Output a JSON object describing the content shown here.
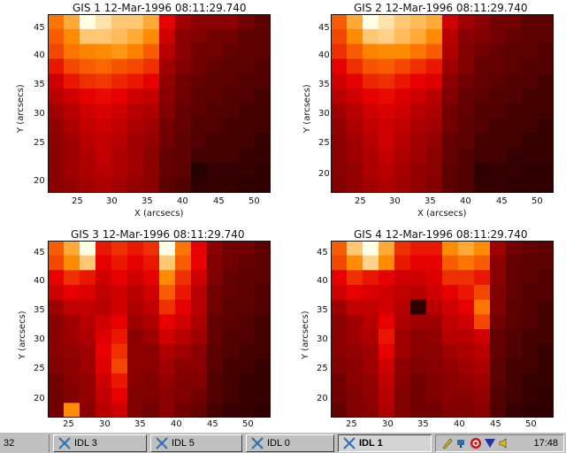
{
  "colors": {
    "bg": "#ffffff",
    "taskbar": "#c0c0c0",
    "text": "#111111"
  },
  "panels": [
    {
      "title": "GIS 1 12-Mar-1996 08:11:29.740",
      "xlabel": "X (arcsecs)",
      "ylabel": "Y (arcsecs)",
      "xticks": [
        "25",
        "30",
        "35",
        "40",
        "45",
        "50"
      ],
      "yticks": [
        "45",
        "40",
        "35",
        "30",
        "25",
        "20"
      ]
    },
    {
      "title": "GIS 2 12-Mar-1996 08:11:29.740",
      "xlabel": "X (arcsecs)",
      "ylabel": "Y (arcsecs)",
      "xticks": [
        "25",
        "30",
        "35",
        "40",
        "45",
        "50"
      ],
      "yticks": [
        "45",
        "40",
        "35",
        "30",
        "25",
        "20"
      ]
    },
    {
      "title": "GIS 3 12-Mar-1996 08:11:29.740",
      "xlabel": "",
      "ylabel": "Y (arcsecs)",
      "xticks": [
        "25",
        "30",
        "35",
        "40",
        "45",
        "50"
      ],
      "yticks": [
        "45",
        "40",
        "35",
        "30",
        "25",
        "20"
      ]
    },
    {
      "title": "GIS 4 12-Mar-1996 08:11:29.740",
      "xlabel": "",
      "ylabel": "Y (arcsecs)",
      "xticks": [
        "25",
        "30",
        "35",
        "40",
        "45",
        "50"
      ],
      "yticks": [
        "45",
        "40",
        "35",
        "30",
        "25",
        "20"
      ]
    }
  ],
  "chart_data": [
    {
      "type": "heatmap",
      "title": "GIS 1 12-Mar-1996 08:11:29.740",
      "xlabel": "X (arcsecs)",
      "ylabel": "Y (arcsecs)",
      "xlim": [
        21,
        52
      ],
      "ylim": [
        17.5,
        48
      ],
      "colormap": "red-temperature",
      "z": [
        [
          0.75,
          0.85,
          1.0,
          0.95,
          0.9,
          0.9,
          0.85,
          0.5,
          0.35,
          0.3,
          0.3,
          0.3,
          0.25,
          0.2
        ],
        [
          0.7,
          0.8,
          0.9,
          0.9,
          0.88,
          0.85,
          0.8,
          0.45,
          0.3,
          0.28,
          0.25,
          0.25,
          0.2,
          0.2
        ],
        [
          0.65,
          0.75,
          0.78,
          0.8,
          0.82,
          0.78,
          0.7,
          0.4,
          0.3,
          0.25,
          0.25,
          0.22,
          0.2,
          0.2
        ],
        [
          0.55,
          0.65,
          0.7,
          0.72,
          0.68,
          0.65,
          0.6,
          0.35,
          0.28,
          0.25,
          0.22,
          0.2,
          0.2,
          0.18
        ],
        [
          0.45,
          0.55,
          0.6,
          0.62,
          0.58,
          0.55,
          0.5,
          0.32,
          0.25,
          0.22,
          0.2,
          0.2,
          0.18,
          0.18
        ],
        [
          0.4,
          0.45,
          0.5,
          0.52,
          0.5,
          0.45,
          0.42,
          0.3,
          0.25,
          0.2,
          0.2,
          0.18,
          0.18,
          0.15
        ],
        [
          0.35,
          0.4,
          0.45,
          0.48,
          0.45,
          0.4,
          0.38,
          0.28,
          0.22,
          0.2,
          0.18,
          0.18,
          0.15,
          0.15
        ],
        [
          0.32,
          0.38,
          0.42,
          0.45,
          0.42,
          0.38,
          0.35,
          0.25,
          0.22,
          0.18,
          0.18,
          0.15,
          0.15,
          0.15
        ],
        [
          0.3,
          0.35,
          0.4,
          0.42,
          0.4,
          0.35,
          0.32,
          0.25,
          0.2,
          0.18,
          0.15,
          0.15,
          0.15,
          0.12
        ],
        [
          0.3,
          0.35,
          0.38,
          0.42,
          0.38,
          0.35,
          0.3,
          0.22,
          0.2,
          0.15,
          0.15,
          0.15,
          0.12,
          0.12
        ],
        [
          0.3,
          0.35,
          0.38,
          0.4,
          0.38,
          0.35,
          0.3,
          0.22,
          0.2,
          0.08,
          0.12,
          0.12,
          0.12,
          0.1
        ],
        [
          0.3,
          0.32,
          0.35,
          0.38,
          0.35,
          0.32,
          0.3,
          0.2,
          0.18,
          0.1,
          0.12,
          0.12,
          0.1,
          0.1
        ]
      ]
    },
    {
      "type": "heatmap",
      "title": "GIS 2 12-Mar-1996 08:11:29.740",
      "xlabel": "X (arcsecs)",
      "ylabel": "Y (arcsecs)",
      "xlim": [
        21,
        52
      ],
      "ylim": [
        17.5,
        48
      ],
      "colormap": "red-temperature",
      "z": [
        [
          0.7,
          0.85,
          1.0,
          0.95,
          0.9,
          0.88,
          0.85,
          0.45,
          0.35,
          0.3,
          0.25,
          0.25,
          0.2,
          0.2
        ],
        [
          0.65,
          0.8,
          0.9,
          0.92,
          0.88,
          0.85,
          0.8,
          0.4,
          0.3,
          0.28,
          0.25,
          0.22,
          0.2,
          0.2
        ],
        [
          0.6,
          0.7,
          0.78,
          0.8,
          0.8,
          0.75,
          0.7,
          0.38,
          0.28,
          0.25,
          0.22,
          0.2,
          0.2,
          0.18
        ],
        [
          0.5,
          0.6,
          0.68,
          0.7,
          0.65,
          0.6,
          0.55,
          0.35,
          0.28,
          0.22,
          0.22,
          0.2,
          0.18,
          0.18
        ],
        [
          0.45,
          0.5,
          0.58,
          0.6,
          0.55,
          0.5,
          0.48,
          0.3,
          0.25,
          0.22,
          0.2,
          0.18,
          0.18,
          0.15
        ],
        [
          0.4,
          0.45,
          0.5,
          0.52,
          0.48,
          0.45,
          0.4,
          0.28,
          0.22,
          0.2,
          0.18,
          0.18,
          0.15,
          0.15
        ],
        [
          0.35,
          0.4,
          0.45,
          0.48,
          0.45,
          0.4,
          0.38,
          0.25,
          0.22,
          0.18,
          0.18,
          0.15,
          0.15,
          0.15
        ],
        [
          0.32,
          0.38,
          0.42,
          0.45,
          0.42,
          0.38,
          0.35,
          0.25,
          0.2,
          0.18,
          0.15,
          0.15,
          0.15,
          0.12
        ],
        [
          0.3,
          0.35,
          0.4,
          0.45,
          0.4,
          0.35,
          0.32,
          0.22,
          0.2,
          0.15,
          0.15,
          0.15,
          0.12,
          0.12
        ],
        [
          0.3,
          0.35,
          0.38,
          0.42,
          0.38,
          0.35,
          0.3,
          0.22,
          0.18,
          0.15,
          0.15,
          0.12,
          0.12,
          0.12
        ],
        [
          0.3,
          0.32,
          0.38,
          0.4,
          0.36,
          0.32,
          0.3,
          0.2,
          0.18,
          0.1,
          0.12,
          0.12,
          0.1,
          0.1
        ],
        [
          0.28,
          0.32,
          0.35,
          0.38,
          0.35,
          0.32,
          0.28,
          0.2,
          0.18,
          0.12,
          0.12,
          0.1,
          0.1,
          0.1
        ]
      ]
    },
    {
      "type": "heatmap",
      "title": "GIS 3 12-Mar-1996 08:11:29.740",
      "xlabel": "",
      "ylabel": "Y (arcsecs)",
      "xlim": [
        21,
        52
      ],
      "ylim": [
        16.5,
        48
      ],
      "colormap": "red-temperature",
      "z": [
        [
          0.7,
          0.85,
          1.0,
          0.55,
          0.6,
          0.55,
          0.6,
          1.0,
          0.75,
          0.5,
          0.3,
          0.25,
          0.25,
          0.2
        ],
        [
          0.65,
          0.8,
          0.9,
          0.5,
          0.55,
          0.5,
          0.55,
          0.9,
          0.7,
          0.5,
          0.28,
          0.25,
          0.22,
          0.2
        ],
        [
          0.5,
          0.6,
          0.55,
          0.45,
          0.5,
          0.45,
          0.5,
          0.8,
          0.6,
          0.45,
          0.28,
          0.22,
          0.2,
          0.2
        ],
        [
          0.45,
          0.5,
          0.48,
          0.42,
          0.45,
          0.4,
          0.45,
          0.7,
          0.55,
          0.4,
          0.25,
          0.22,
          0.2,
          0.18
        ],
        [
          0.35,
          0.42,
          0.42,
          0.4,
          0.45,
          0.38,
          0.42,
          0.6,
          0.5,
          0.4,
          0.25,
          0.2,
          0.2,
          0.18
        ],
        [
          0.3,
          0.35,
          0.4,
          0.45,
          0.5,
          0.35,
          0.38,
          0.5,
          0.45,
          0.38,
          0.22,
          0.2,
          0.18,
          0.15
        ],
        [
          0.3,
          0.35,
          0.38,
          0.48,
          0.55,
          0.3,
          0.35,
          0.45,
          0.4,
          0.35,
          0.22,
          0.18,
          0.18,
          0.15
        ],
        [
          0.3,
          0.32,
          0.35,
          0.5,
          0.6,
          0.3,
          0.3,
          0.38,
          0.35,
          0.3,
          0.2,
          0.18,
          0.15,
          0.15
        ],
        [
          0.28,
          0.3,
          0.35,
          0.48,
          0.65,
          0.3,
          0.3,
          0.35,
          0.3,
          0.3,
          0.2,
          0.15,
          0.15,
          0.12
        ],
        [
          0.25,
          0.3,
          0.32,
          0.45,
          0.55,
          0.3,
          0.28,
          0.32,
          0.28,
          0.28,
          0.18,
          0.15,
          0.12,
          0.12
        ],
        [
          0.25,
          0.28,
          0.32,
          0.42,
          0.5,
          0.28,
          0.28,
          0.3,
          0.28,
          0.25,
          0.18,
          0.15,
          0.12,
          0.12
        ],
        [
          0.25,
          0.8,
          0.3,
          0.4,
          0.45,
          0.28,
          0.25,
          0.3,
          0.25,
          0.22,
          0.15,
          0.12,
          0.12,
          0.1
        ]
      ]
    },
    {
      "type": "heatmap",
      "title": "GIS 4 12-Mar-1996 08:11:29.740",
      "xlabel": "",
      "ylabel": "Y (arcsecs)",
      "xlim": [
        21,
        52
      ],
      "ylim": [
        16.5,
        48
      ],
      "colormap": "red-temperature",
      "z": [
        [
          0.7,
          0.9,
          1.0,
          0.85,
          0.6,
          0.55,
          0.55,
          0.8,
          0.85,
          0.8,
          0.35,
          0.25,
          0.22,
          0.2
        ],
        [
          0.65,
          0.8,
          0.92,
          0.8,
          0.55,
          0.5,
          0.5,
          0.7,
          0.75,
          0.7,
          0.3,
          0.22,
          0.2,
          0.2
        ],
        [
          0.5,
          0.6,
          0.55,
          0.5,
          0.45,
          0.45,
          0.48,
          0.6,
          0.6,
          0.55,
          0.3,
          0.22,
          0.2,
          0.18
        ],
        [
          0.45,
          0.5,
          0.48,
          0.45,
          0.42,
          0.4,
          0.45,
          0.5,
          0.55,
          0.65,
          0.28,
          0.22,
          0.18,
          0.18
        ],
        [
          0.35,
          0.42,
          0.42,
          0.45,
          0.4,
          0.1,
          0.4,
          0.45,
          0.5,
          0.75,
          0.28,
          0.2,
          0.18,
          0.15
        ],
        [
          0.3,
          0.35,
          0.4,
          0.5,
          0.38,
          0.35,
          0.35,
          0.42,
          0.45,
          0.65,
          0.25,
          0.2,
          0.18,
          0.15
        ],
        [
          0.3,
          0.35,
          0.38,
          0.55,
          0.35,
          0.3,
          0.32,
          0.4,
          0.4,
          0.45,
          0.22,
          0.18,
          0.15,
          0.15
        ],
        [
          0.3,
          0.32,
          0.35,
          0.5,
          0.35,
          0.3,
          0.3,
          0.35,
          0.38,
          0.4,
          0.22,
          0.18,
          0.15,
          0.12
        ],
        [
          0.28,
          0.3,
          0.35,
          0.45,
          0.3,
          0.28,
          0.3,
          0.32,
          0.35,
          0.38,
          0.2,
          0.15,
          0.15,
          0.12
        ],
        [
          0.25,
          0.3,
          0.32,
          0.42,
          0.3,
          0.25,
          0.28,
          0.3,
          0.32,
          0.35,
          0.2,
          0.15,
          0.12,
          0.12
        ],
        [
          0.25,
          0.28,
          0.32,
          0.4,
          0.28,
          0.25,
          0.28,
          0.3,
          0.3,
          0.32,
          0.18,
          0.15,
          0.12,
          0.1
        ],
        [
          0.22,
          0.28,
          0.3,
          0.38,
          0.28,
          0.25,
          0.25,
          0.28,
          0.28,
          0.3,
          0.18,
          0.12,
          0.1,
          0.1
        ]
      ]
    }
  ],
  "taskbar": {
    "left_text": "32",
    "buttons": [
      "IDL 3",
      "IDL 5",
      "IDL 0",
      "IDL 1"
    ],
    "active_index": 3,
    "clock": "17:48"
  }
}
